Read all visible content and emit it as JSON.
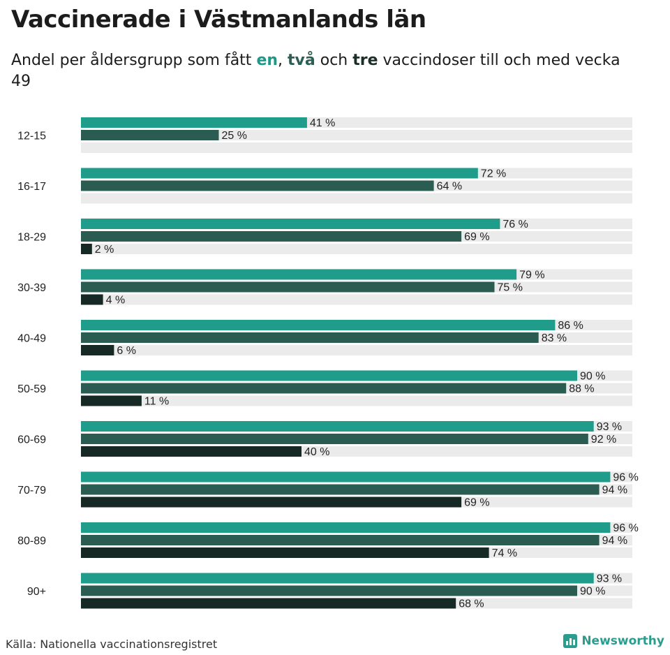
{
  "title": "Vaccinerade i Västmanlands län",
  "subtitle": {
    "before": "Andel per åldersgrupp som fått ",
    "k1": "en",
    "sep1": ", ",
    "k2": "två",
    "mid": " och ",
    "k3": "tre",
    "after": " vaccindoser till och med vecka 49"
  },
  "source": "Källa: Nationella vaccinationsregistret",
  "brand": "Newsworthy",
  "colors": {
    "dose1": "#1f9c8a",
    "dose2": "#2b5c52",
    "dose3": "#172925",
    "track": "#ebebeb",
    "brand": "#2a9d8f"
  },
  "chart_data": {
    "type": "bar",
    "orientation": "horizontal",
    "value_suffix": " %",
    "xlim": [
      0,
      100
    ],
    "grid": false,
    "legend": "none",
    "categories": [
      "12-15",
      "16-17",
      "18-29",
      "30-39",
      "40-49",
      "50-59",
      "60-69",
      "70-79",
      "80-89",
      "90+"
    ],
    "series": [
      {
        "values": [
          41,
          72,
          76,
          79,
          86,
          90,
          93,
          96,
          96,
          93
        ]
      },
      {
        "values": [
          25,
          64,
          69,
          75,
          83,
          88,
          92,
          94,
          94,
          90
        ]
      },
      {
        "values": [
          null,
          null,
          2,
          4,
          6,
          11,
          40,
          69,
          74,
          68
        ]
      }
    ]
  }
}
